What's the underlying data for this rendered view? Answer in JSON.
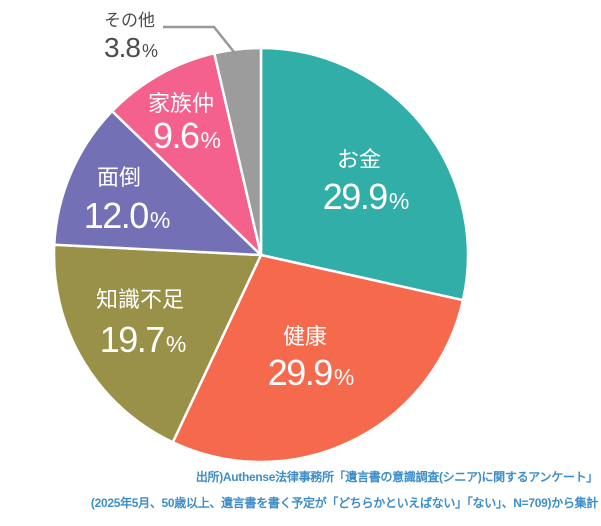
{
  "chart_data": {
    "type": "pie",
    "title": "",
    "direction": "clockwise",
    "start_angle_deg": 0,
    "legend_position": "none",
    "label_text_color": "#FFFFFF",
    "outside_label_color": "#4D4D4D",
    "slice_gap_color": "#FFFFFF",
    "percent_sign": "%",
    "slices": [
      {
        "key": "money",
        "label": "お金",
        "value": 29.9,
        "pct": "29.9",
        "color": "#31AEA8",
        "label_placement": "inside"
      },
      {
        "key": "health",
        "label": "健康",
        "value": 29.9,
        "pct": "29.9",
        "color": "#F5694C",
        "label_placement": "inside"
      },
      {
        "key": "knowledge",
        "label": "知識不足",
        "value": 19.7,
        "pct": "19.7",
        "color": "#9A9149",
        "label_placement": "inside"
      },
      {
        "key": "hassle",
        "label": "面倒",
        "value": 12.0,
        "pct": "12.0",
        "color": "#7370B5",
        "label_placement": "inside"
      },
      {
        "key": "family",
        "label": "家族仲",
        "value": 9.6,
        "pct": "9.6",
        "color": "#F4618D",
        "label_placement": "inside"
      },
      {
        "key": "other",
        "label": "その他",
        "value": 3.8,
        "pct": "3.8",
        "color": "#9C9C9C",
        "label_placement": "outside-with-leader-line"
      }
    ]
  },
  "source": {
    "line1": "出所)Authense法律事務所「遺言書の意識調査(シニア)に関するアンケート」",
    "line2": "(2025年5月、50歳以上、遺言書を書く予定が「どちらかといえばない」「ない」、N=709)から集計",
    "color": "#3E8EC8"
  }
}
